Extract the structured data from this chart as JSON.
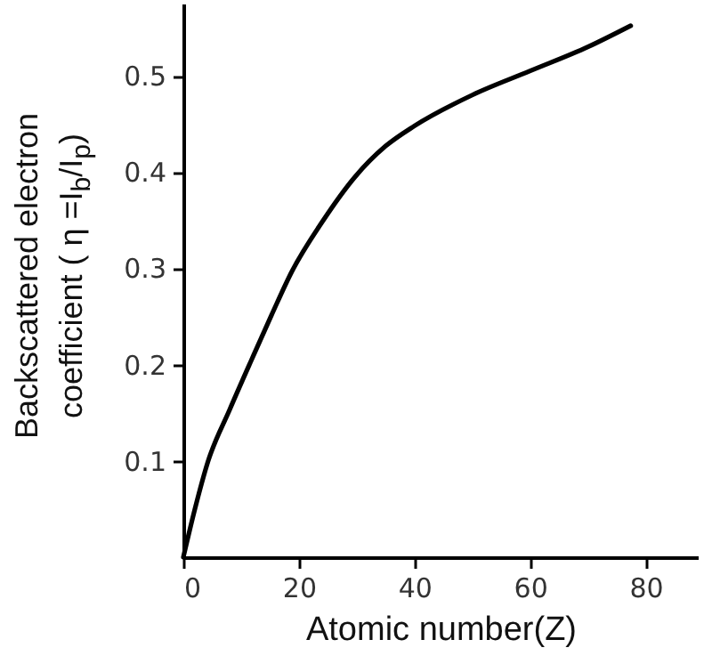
{
  "chart_data": {
    "type": "line",
    "xlabel": "Atomic number(Z)",
    "ylabel": "Backscattered electron\ncoefficient ( η =I$_{b}$/I$_{p}$)",
    "x": [
      0,
      2,
      4.3,
      8,
      11.8,
      15.3,
      18.8,
      24,
      29.7,
      35,
      40,
      50,
      60,
      70,
      77.4
    ],
    "series": [
      {
        "color": "#000000",
        "values": [
          0,
          0.05,
          0.1,
          0.153,
          0.205,
          0.252,
          0.297,
          0.348,
          0.395,
          0.427,
          0.448,
          0.48,
          0.505,
          0.53,
          0.552
        ]
      }
    ],
    "xlim": [
      0,
      89
    ],
    "xticks": [
      0,
      20,
      40,
      60,
      80
    ],
    "ylim": [
      0,
      0.575
    ],
    "yticks": [
      0.1,
      0.2,
      0.3,
      0.4,
      0.5
    ],
    "grid": false,
    "marker": "none",
    "line_style": "solid"
  }
}
